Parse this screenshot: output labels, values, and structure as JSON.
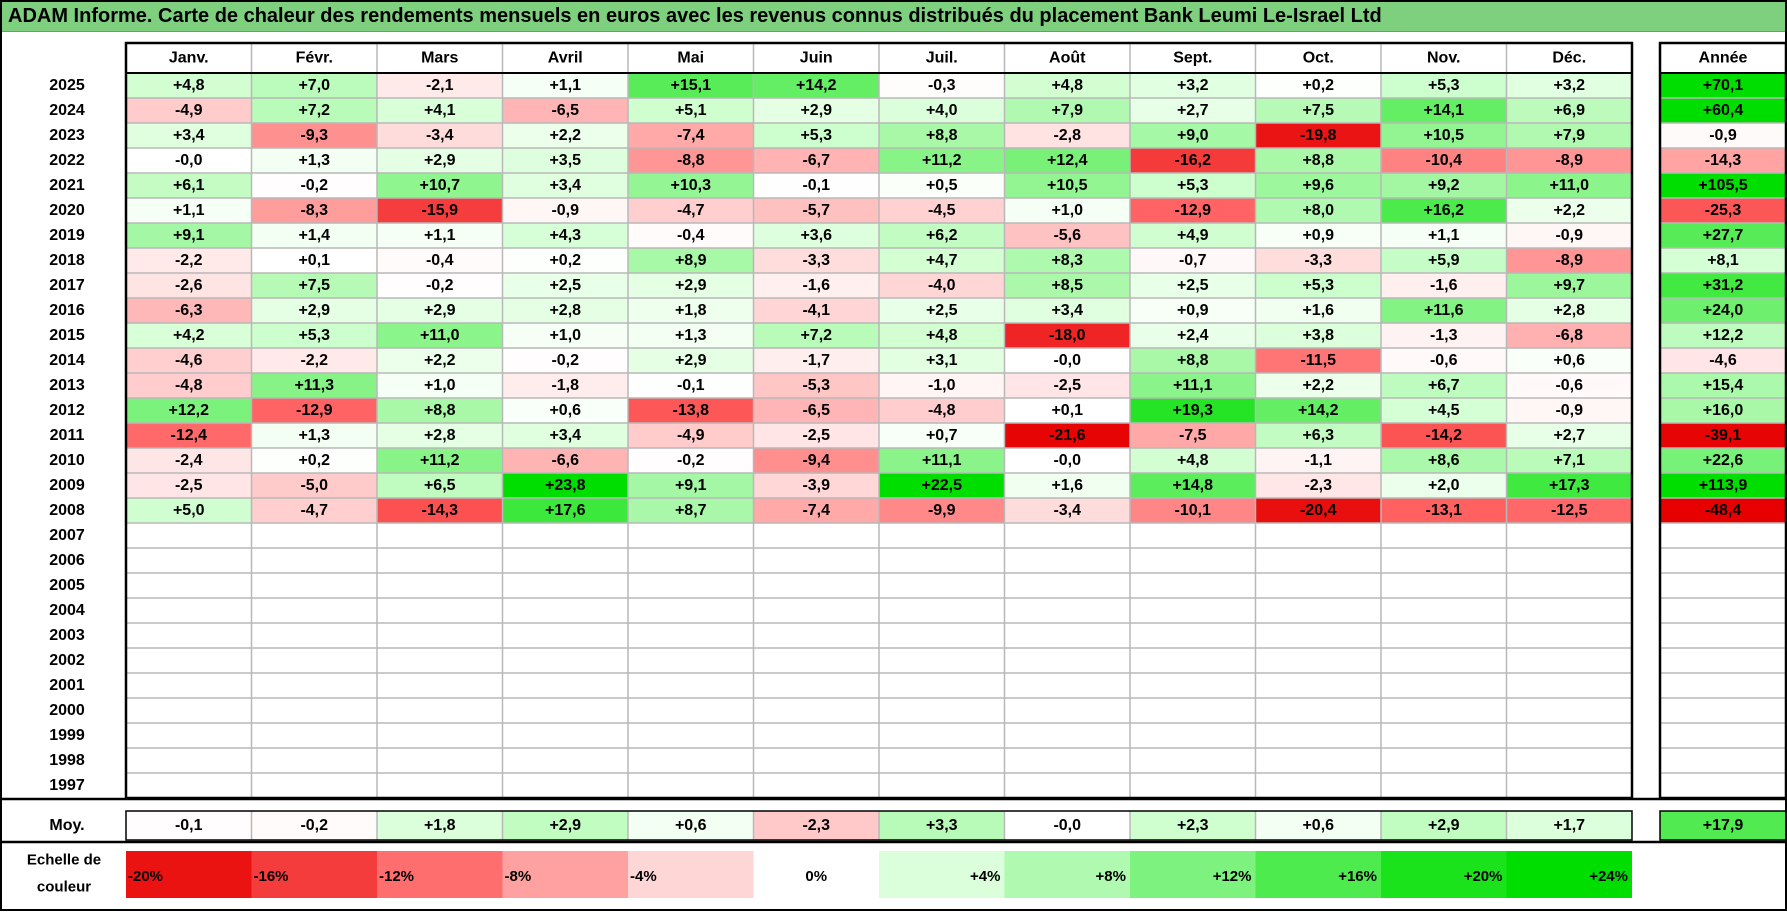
{
  "title": "ADAM Informe. Carte de chaleur des rendements mensuels en euros avec les revenus connus distribués du placement Bank Leumi Le-Israel Ltd",
  "chart_data": {
    "type": "heatmap",
    "months": [
      "Janv.",
      "Févr.",
      "Mars",
      "Avril",
      "Mai",
      "Juin",
      "Juil.",
      "Août",
      "Sept.",
      "Oct.",
      "Nov.",
      "Déc."
    ],
    "year_header": "Année",
    "avg_label": "Moy.",
    "years": [
      "2025",
      "2024",
      "2023",
      "2022",
      "2021",
      "2020",
      "2019",
      "2018",
      "2017",
      "2016",
      "2015",
      "2014",
      "2013",
      "2012",
      "2011",
      "2010",
      "2009",
      "2008",
      "2007",
      "2006",
      "2005",
      "2004",
      "2003",
      "2002",
      "2001",
      "2000",
      "1999",
      "1998",
      "1997"
    ],
    "values": [
      [
        "+4,8",
        "+7,0",
        "-2,1",
        "+1,1",
        "+15,1",
        "+14,2",
        "-0,3",
        "+4,8",
        "+3,2",
        "+0,2",
        "+5,3",
        "+3,2"
      ],
      [
        "-4,9",
        "+7,2",
        "+4,1",
        "-6,5",
        "+5,1",
        "+2,9",
        "+4,0",
        "+7,9",
        "+2,7",
        "+7,5",
        "+14,1",
        "+6,9"
      ],
      [
        "+3,4",
        "-9,3",
        "-3,4",
        "+2,2",
        "-7,4",
        "+5,3",
        "+8,8",
        "-2,8",
        "+9,0",
        "-19,8",
        "+10,5",
        "+7,9"
      ],
      [
        "-0,0",
        "+1,3",
        "+2,9",
        "+3,5",
        "-8,8",
        "-6,7",
        "+11,2",
        "+12,4",
        "-16,2",
        "+8,8",
        "-10,4",
        "-8,9"
      ],
      [
        "+6,1",
        "-0,2",
        "+10,7",
        "+3,4",
        "+10,3",
        "-0,1",
        "+0,5",
        "+10,5",
        "+5,3",
        "+9,6",
        "+9,2",
        "+11,0"
      ],
      [
        "+1,1",
        "-8,3",
        "-15,9",
        "-0,9",
        "-4,7",
        "-5,7",
        "-4,5",
        "+1,0",
        "-12,9",
        "+8,0",
        "+16,2",
        "+2,2"
      ],
      [
        "+9,1",
        "+1,4",
        "+1,1",
        "+4,3",
        "-0,4",
        "+3,6",
        "+6,2",
        "-5,6",
        "+4,9",
        "+0,9",
        "+1,1",
        "-0,9"
      ],
      [
        "-2,2",
        "+0,1",
        "-0,4",
        "+0,2",
        "+8,9",
        "-3,3",
        "+4,7",
        "+8,3",
        "-0,7",
        "-3,3",
        "+5,9",
        "-8,9"
      ],
      [
        "-2,6",
        "+7,5",
        "-0,2",
        "+2,5",
        "+2,9",
        "-1,6",
        "-4,0",
        "+8,5",
        "+2,5",
        "+5,3",
        "-1,6",
        "+9,7"
      ],
      [
        "-6,3",
        "+2,9",
        "+2,9",
        "+2,8",
        "+1,8",
        "-4,1",
        "+2,5",
        "+3,4",
        "+0,9",
        "+1,6",
        "+11,6",
        "+2,8"
      ],
      [
        "+4,2",
        "+5,3",
        "+11,0",
        "+1,0",
        "+1,3",
        "+7,2",
        "+4,8",
        "-18,0",
        "+2,4",
        "+3,8",
        "-1,3",
        "-6,8"
      ],
      [
        "-4,6",
        "-2,2",
        "+2,2",
        "-0,2",
        "+2,9",
        "-1,7",
        "+3,1",
        "-0,0",
        "+8,8",
        "-11,5",
        "-0,6",
        "+0,6"
      ],
      [
        "-4,8",
        "+11,3",
        "+1,0",
        "-1,8",
        "-0,1",
        "-5,3",
        "-1,0",
        "-2,5",
        "+11,1",
        "+2,2",
        "+6,7",
        "-0,6"
      ],
      [
        "+12,2",
        "-12,9",
        "+8,8",
        "+0,6",
        "-13,8",
        "-6,5",
        "-4,8",
        "+0,1",
        "+19,3",
        "+14,2",
        "+4,5",
        "-0,9"
      ],
      [
        "-12,4",
        "+1,3",
        "+2,8",
        "+3,4",
        "-4,9",
        "-2,5",
        "+0,7",
        "-21,6",
        "-7,5",
        "+6,3",
        "-14,2",
        "+2,7"
      ],
      [
        "-2,4",
        "+0,2",
        "+11,2",
        "-6,6",
        "-0,2",
        "-9,4",
        "+11,1",
        "-0,0",
        "+4,8",
        "-1,1",
        "+8,6",
        "+7,1"
      ],
      [
        "-2,5",
        "-5,0",
        "+6,5",
        "+23,8",
        "+9,1",
        "-3,9",
        "+22,5",
        "+1,6",
        "+14,8",
        "-2,3",
        "+2,0",
        "+17,3"
      ],
      [
        "+5,0",
        "-4,7",
        "-14,3",
        "+17,6",
        "+8,7",
        "-7,4",
        "-9,9",
        "-3,4",
        "-10,1",
        "-20,4",
        "-13,1",
        "-12,5"
      ],
      [],
      [],
      [],
      [],
      [],
      [],
      [],
      [],
      [],
      [],
      []
    ],
    "year_totals": [
      "+70,1",
      "+60,4",
      "-0,9",
      "-14,3",
      "+105,5",
      "-25,3",
      "+27,7",
      "+8,1",
      "+31,2",
      "+24,0",
      "+12,2",
      "-4,6",
      "+15,4",
      "+16,0",
      "-39,1",
      "+22,6",
      "+113,9",
      "-48,4",
      "",
      "",
      "",
      "",
      "",
      "",
      "",
      "",
      "",
      "",
      ""
    ],
    "monthly_avg": [
      "-0,1",
      "-0,2",
      "+1,8",
      "+2,9",
      "+0,6",
      "-2,3",
      "+3,3",
      "-0,0",
      "+2,3",
      "+0,6",
      "+2,9",
      "+1,7"
    ],
    "avg_total": "+17,9",
    "scale_label": [
      "Echelle de",
      "couleur"
    ],
    "scale": [
      {
        "label": "-20%",
        "value": -20
      },
      {
        "label": "-16%",
        "value": -16
      },
      {
        "label": "-12%",
        "value": -12
      },
      {
        "label": "-8%",
        "value": -8
      },
      {
        "label": "-4%",
        "value": -4
      },
      {
        "label": "0%",
        "value": 0
      },
      {
        "label": "+4%",
        "value": 4
      },
      {
        "label": "+8%",
        "value": 8
      },
      {
        "label": "+12%",
        "value": 12
      },
      {
        "label": "+16%",
        "value": 16
      },
      {
        "label": "+20%",
        "value": 20
      },
      {
        "label": "+24%",
        "value": 24
      }
    ],
    "colors": {
      "title_bg": "#7ed07e",
      "negative_max": "#ff0000",
      "positive_max": "#00e000",
      "neutral": "#ffffff"
    }
  }
}
